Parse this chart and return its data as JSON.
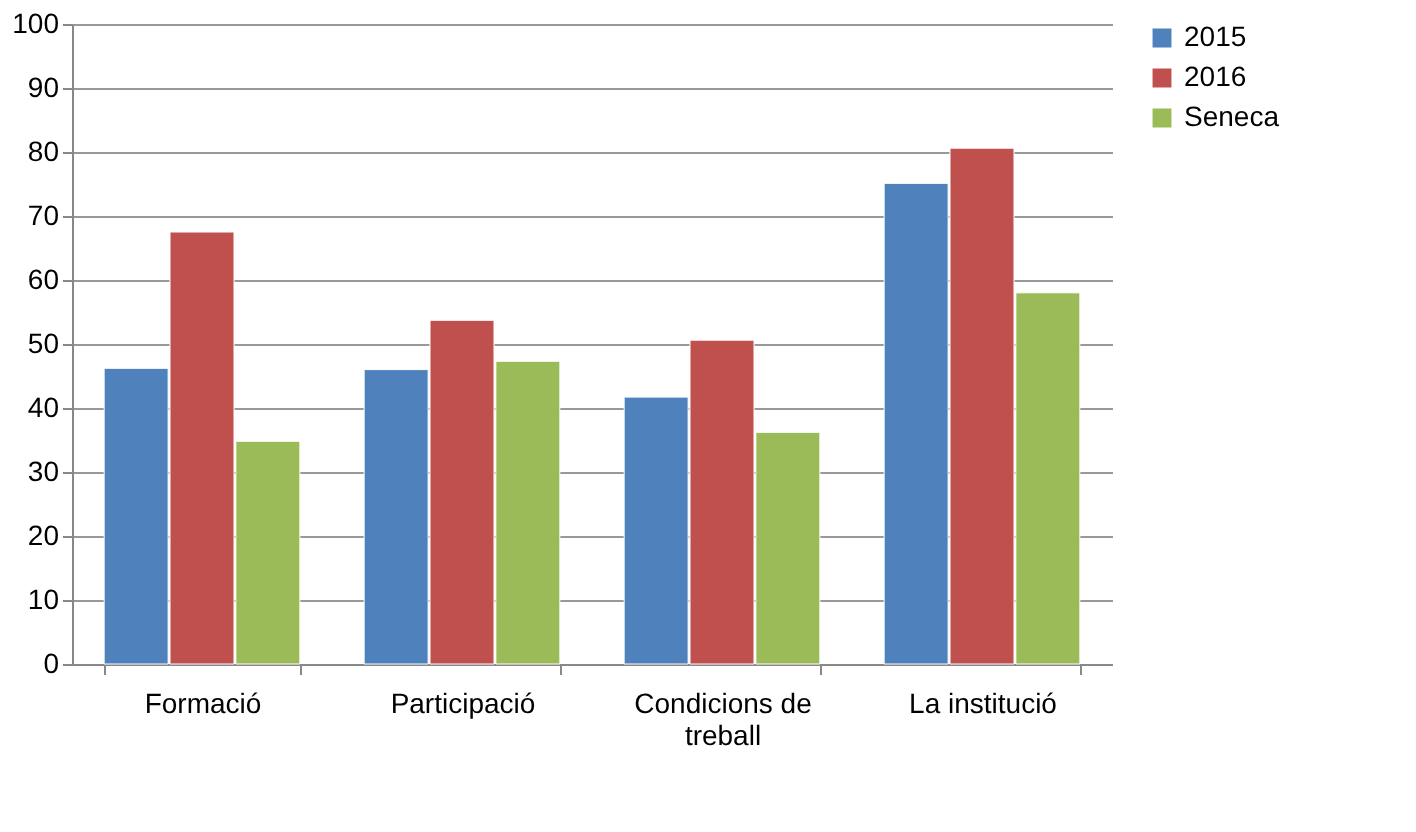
{
  "chart_data": {
    "type": "bar",
    "categories": [
      "Formació",
      "Participació",
      "Condicions de treball",
      "La institució"
    ],
    "series": [
      {
        "name": "2015",
        "color": "#4f81bd",
        "values": [
          46.2,
          46.0,
          41.7,
          75.1
        ]
      },
      {
        "name": "2016",
        "color": "#c0504d",
        "values": [
          67.5,
          53.7,
          50.6,
          80.6
        ]
      },
      {
        "name": "Seneca",
        "color": "#9bbb59",
        "values": [
          34.8,
          47.3,
          36.2,
          58.0
        ]
      }
    ],
    "ylim": [
      0,
      100
    ],
    "yticks": [
      0,
      10,
      20,
      30,
      40,
      50,
      60,
      70,
      80,
      90,
      100
    ],
    "grid": "y",
    "legend": "right"
  }
}
